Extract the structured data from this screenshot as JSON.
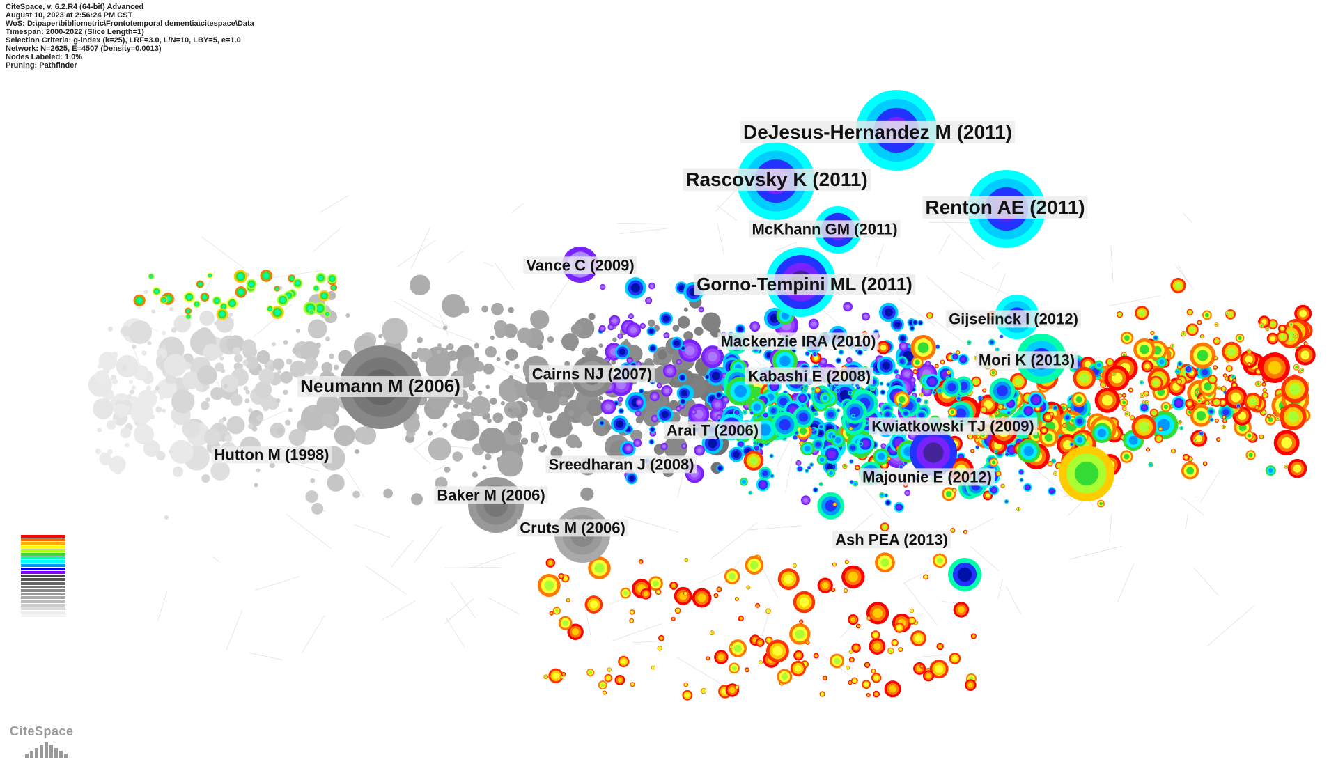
{
  "meta": [
    "CiteSpace, v. 6.2.R4 (64-bit) Advanced",
    "August 10, 2023 at 2:56:24 PM CST",
    "WoS: D:\\paper\\bibliometric\\Frontotemporal dementia\\citespace\\Data",
    "Timespan: 2000-2022 (Slice Length=1)",
    "Selection Criteria: g-index (k=25), LRF=3.0, L/N=10, LBY=5, e=1.0",
    "Network: N=2625, E=4507 (Density=0.0013)",
    "Nodes Labeled: 1.0%",
    "Pruning: Pathfinder"
  ],
  "labels": {
    "dejesus": "DeJesus-Hernandez M (2011)",
    "rascovsky": "Rascovsky K (2011)",
    "renton": "Renton AE (2011)",
    "mckhann": "McKhann GM (2011)",
    "vance": "Vance C (2009)",
    "gorno": "Gorno-Tempini ML (2011)",
    "gijselinck": "Gijselinck I (2012)",
    "mackenzie": "Mackenzie IRA (2010)",
    "mori": "Mori K (2013)",
    "cairns": "Cairns NJ (2007)",
    "kabashi": "Kabashi E (2008)",
    "neumann": "Neumann M (2006)",
    "kwiatkowski": "Kwiatkowski TJ (2009)",
    "arai": "Arai T (2006)",
    "hutton": "Hutton M (1998)",
    "sreedharan": "Sreedharan J (2008)",
    "majounie": "Majounie E (2012)",
    "baker": "Baker M (2006)",
    "cruts": "Cruts M (2006)",
    "ash": "Ash PEA (2013)"
  },
  "legend_colors": [
    "#ff0000",
    "#ff6600",
    "#ffaa00",
    "#ffff00",
    "#aaff00",
    "#33dd33",
    "#00ffaa",
    "#00ffff",
    "#0099ff",
    "#0000ff",
    "#8800ff",
    "#444444",
    "#555555",
    "#666666",
    "#777777",
    "#888888",
    "#999999",
    "#aaaaaa",
    "#bbbbbb",
    "#cccccc",
    "#dddddd",
    "#eeeeee",
    "#f6f6f6"
  ],
  "logo": "CiteSpace"
}
